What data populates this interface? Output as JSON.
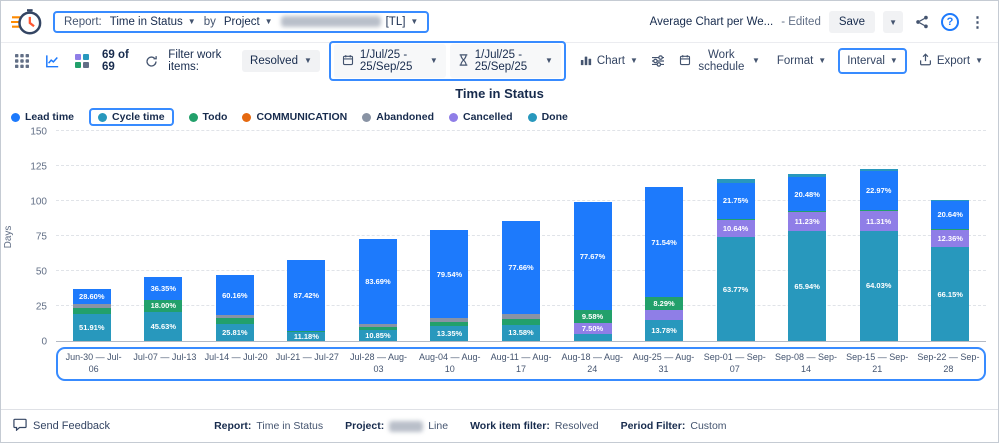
{
  "header": {
    "report_label": "Report:",
    "report_value": "Time in Status",
    "by_label": "by",
    "scope_value": "Project",
    "project_tag": "[TL]",
    "doc_title": "Average Chart per We...",
    "edited_label": "- Edited",
    "save_label": "Save"
  },
  "toolbar": {
    "items_count": "69 of 69",
    "filter_label": "Filter work items:",
    "status_filter_value": "Resolved",
    "date_range_primary": "1/Jul/25 - 25/Sep/25",
    "date_range_secondary": "1/Jul/25 - 25/Sep/25",
    "chart_button": "Chart",
    "work_schedule_button": "Work schedule",
    "format_button": "Format",
    "interval_button": "Interval",
    "export_button": "Export"
  },
  "chart_data": {
    "type": "bar",
    "stacked": true,
    "title": "Time in Status",
    "ylabel": "Days",
    "ylim": [
      0,
      150
    ],
    "yticks": [
      0,
      25,
      50,
      75,
      100,
      125,
      150
    ],
    "grid": true,
    "legend_position": "top-left",
    "statuses": {
      "lead": {
        "label": "Lead time",
        "color": "#1D7AFC"
      },
      "cycle": {
        "label": "Cycle time",
        "color": "#2898BD"
      },
      "todo": {
        "label": "Todo",
        "color": "#22A06B"
      },
      "communication": {
        "label": "COMMUNICATION",
        "color": "#E56910"
      },
      "abandoned": {
        "label": "Abandoned",
        "color": "#8993A4"
      },
      "cancelled": {
        "label": "Cancelled",
        "color": "#8F7EE7"
      },
      "done": {
        "label": "Done",
        "color": "#2898BD"
      }
    },
    "legend": [
      {
        "status": "lead",
        "selected": false
      },
      {
        "status": "cycle",
        "selected": true
      },
      {
        "status": "todo",
        "selected": false
      },
      {
        "status": "communication",
        "selected": false
      },
      {
        "status": "abandoned",
        "selected": false
      },
      {
        "status": "cancelled",
        "selected": false
      },
      {
        "status": "done",
        "selected": false
      }
    ],
    "categories": [
      "Jun-30 — Jul-06",
      "Jul-07 — Jul-13",
      "Jul-14 — Jul-20",
      "Jul-21 — Jul-27",
      "Jul-28 — Aug-03",
      "Aug-04 — Aug-10",
      "Aug-11 — Aug-17",
      "Aug-18 — Aug-24",
      "Aug-25 — Aug-31",
      "Sep-01 — Sep-07",
      "Sep-08 — Sep-14",
      "Sep-15 — Sep-21",
      "Sep-22 — Sep-28"
    ],
    "bars": [
      {
        "category": "Jun-30 — Jul-06",
        "total_days": 37,
        "segments": [
          {
            "status": "cycle",
            "pct": 51.91,
            "label": "51.91%"
          },
          {
            "status": "todo",
            "pct": 12.0
          },
          {
            "status": "abandoned",
            "pct": 7.49
          },
          {
            "status": "lead",
            "pct": 28.6,
            "label": "28.60%"
          }
        ]
      },
      {
        "category": "Jul-07 — Jul-13",
        "total_days": 46,
        "segments": [
          {
            "status": "cycle",
            "pct": 45.63,
            "label": "45.63%"
          },
          {
            "status": "todo",
            "pct": 18.0,
            "label": "18.00%"
          },
          {
            "status": "lead",
            "pct": 36.35,
            "label": "36.35%"
          }
        ]
      },
      {
        "category": "Jul-14 — Jul-20",
        "total_days": 47,
        "segments": [
          {
            "status": "cycle",
            "pct": 25.81,
            "label": "25.81%"
          },
          {
            "status": "todo",
            "pct": 8.5
          },
          {
            "status": "abandoned",
            "pct": 5.53
          },
          {
            "status": "lead",
            "pct": 60.16,
            "label": "60.16%"
          }
        ]
      },
      {
        "category": "Jul-21 — Jul-27",
        "total_days": 58,
        "segments": [
          {
            "status": "cycle",
            "pct": 11.18,
            "label": "11.18%"
          },
          {
            "status": "todo",
            "pct": 1.4
          },
          {
            "status": "lead",
            "pct": 87.42,
            "label": "87.42%"
          }
        ]
      },
      {
        "category": "Jul-28 — Aug-03",
        "total_days": 73,
        "segments": [
          {
            "status": "cycle",
            "pct": 10.85,
            "label": "10.85%"
          },
          {
            "status": "todo",
            "pct": 3.0
          },
          {
            "status": "abandoned",
            "pct": 2.46
          },
          {
            "status": "lead",
            "pct": 83.69,
            "label": "83.69%"
          }
        ]
      },
      {
        "category": "Aug-04 — Aug-10",
        "total_days": 79,
        "segments": [
          {
            "status": "cycle",
            "pct": 13.35,
            "label": "13.35%"
          },
          {
            "status": "todo",
            "pct": 4.0
          },
          {
            "status": "abandoned",
            "pct": 3.11
          },
          {
            "status": "lead",
            "pct": 79.54,
            "label": "79.54%"
          }
        ]
      },
      {
        "category": "Aug-11 — Aug-17",
        "total_days": 86,
        "segments": [
          {
            "status": "cycle",
            "pct": 13.58,
            "label": "13.58%"
          },
          {
            "status": "todo",
            "pct": 4.5
          },
          {
            "status": "abandoned",
            "pct": 4.26
          },
          {
            "status": "lead",
            "pct": 77.66,
            "label": "77.66%"
          }
        ]
      },
      {
        "category": "Aug-18 — Aug-24",
        "total_days": 99,
        "segments": [
          {
            "status": "cycle",
            "pct": 5.25
          },
          {
            "status": "cancelled",
            "pct": 7.5,
            "label": "7.50%"
          },
          {
            "status": "todo",
            "pct": 9.58,
            "label": "9.58%"
          },
          {
            "status": "lead",
            "pct": 77.67,
            "label": "77.67%"
          }
        ]
      },
      {
        "category": "Aug-25 — Aug-31",
        "total_days": 110,
        "segments": [
          {
            "status": "cycle",
            "pct": 13.78,
            "label": "13.78%"
          },
          {
            "status": "cancelled",
            "pct": 6.39
          },
          {
            "status": "todo",
            "pct": 8.29,
            "label": "8.29%"
          },
          {
            "status": "lead",
            "pct": 71.54,
            "label": "71.54%"
          }
        ]
      },
      {
        "category": "Sep-01 — Sep-07",
        "total_days": 116,
        "segments": [
          {
            "status": "cycle",
            "pct": 63.77,
            "label": "63.77%"
          },
          {
            "status": "cancelled",
            "pct": 10.64,
            "label": "10.64%"
          },
          {
            "status": "todo",
            "pct": 1.0
          },
          {
            "status": "lead",
            "pct": 21.75,
            "label": "21.75%"
          },
          {
            "status": "done",
            "pct": 2.84
          }
        ]
      },
      {
        "category": "Sep-08 — Sep-14",
        "total_days": 119,
        "segments": [
          {
            "status": "cycle",
            "pct": 65.94,
            "label": "65.94%"
          },
          {
            "status": "cancelled",
            "pct": 11.23,
            "label": "11.23%"
          },
          {
            "status": "todo",
            "pct": 0.8
          },
          {
            "status": "lead",
            "pct": 20.48,
            "label": "20.48%"
          },
          {
            "status": "done",
            "pct": 1.55
          }
        ]
      },
      {
        "category": "Sep-15 — Sep-21",
        "total_days": 123,
        "segments": [
          {
            "status": "cycle",
            "pct": 64.03,
            "label": "64.03%"
          },
          {
            "status": "cancelled",
            "pct": 11.31,
            "label": "11.31%"
          },
          {
            "status": "todo",
            "pct": 0.7
          },
          {
            "status": "lead",
            "pct": 22.97,
            "label": "22.97%"
          },
          {
            "status": "done",
            "pct": 0.99
          }
        ]
      },
      {
        "category": "Sep-22 — Sep-28",
        "total_days": 101,
        "segments": [
          {
            "status": "cycle",
            "pct": 66.15,
            "label": "66.15%"
          },
          {
            "status": "cancelled",
            "pct": 12.36,
            "label": "12.36%"
          },
          {
            "status": "todo",
            "pct": 0.5
          },
          {
            "status": "lead",
            "pct": 20.64,
            "label": "20.64%"
          },
          {
            "status": "done",
            "pct": 0.35
          }
        ]
      }
    ]
  },
  "footer": {
    "send_feedback": "Send Feedback",
    "report_label": "Report:",
    "report_value": "Time in Status",
    "project_label": "Project:",
    "project_value": "Line",
    "work_item_filter_label": "Work item filter:",
    "work_item_filter_value": "Resolved",
    "period_filter_label": "Period Filter:",
    "period_filter_value": "Custom"
  }
}
